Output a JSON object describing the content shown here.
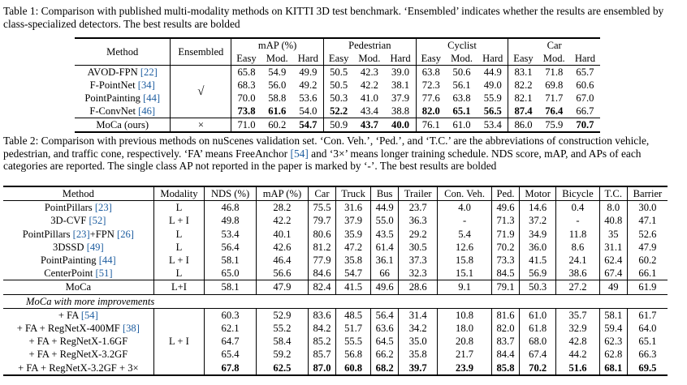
{
  "caption1": {
    "label": "Table 1:",
    "text": "Comparison with published multi-modality methods on KITTI 3D test benchmark. ‘Ensembled’ indicates whether the results are ensembled by class-specialized detectors. The best results are bolded"
  },
  "table1": {
    "h_method": "Method",
    "h_ensembled": "Ensembled",
    "h_map": "mAP (%)",
    "h_ped": "Pedestrian",
    "h_cyc": "Cyclist",
    "h_car": "Car",
    "sub": [
      "Easy",
      "Mod.",
      "Hard",
      "Easy",
      "Mod.",
      "Hard",
      "Easy",
      "Mod.",
      "Hard",
      "Easy",
      "Mod.",
      "Hard"
    ],
    "rows": [
      {
        "name": "AVOD-FPN",
        "cite": "[22]",
        "v": [
          "65.8",
          "54.9",
          "49.9",
          "50.5",
          "42.3",
          "39.0",
          "63.8",
          "50.6",
          "44.9",
          "83.1",
          "71.8",
          "65.7"
        ]
      },
      {
        "name": "F-PointNet",
        "cite": "[34]",
        "v": [
          "68.3",
          "56.0",
          "49.2",
          "50.5",
          "42.2",
          "38.1",
          "72.3",
          "56.1",
          "49.0",
          "82.2",
          "69.8",
          "60.6"
        ]
      },
      {
        "name": "PointPainting",
        "cite": "[44]",
        "v": [
          "70.0",
          "58.8",
          "53.6",
          "50.3",
          "41.0",
          "37.9",
          "77.6",
          "63.8",
          "55.9",
          "82.1",
          "71.7",
          "67.0"
        ]
      },
      {
        "name": "F-ConvNet",
        "cite": "[46]",
        "v": [
          "73.8",
          "61.6",
          "54.0",
          "52.2",
          "43.4",
          "38.8",
          "82.0",
          "65.1",
          "56.5",
          "87.4",
          "76.4",
          "66.7"
        ]
      }
    ],
    "ensembled_mark": "√",
    "moca": {
      "name": "MoCa (ours)",
      "ens": "×",
      "v": [
        "71.0",
        "60.2",
        "54.7",
        "50.9",
        "43.7",
        "40.0",
        "76.1",
        "61.0",
        "53.4",
        "86.0",
        "75.9",
        "70.7"
      ]
    }
  },
  "caption2": {
    "label": "Table 2:",
    "text": "Comparison with previous methods on nuScenes validation set. ‘Con. Veh.’, ‘Ped.’, and ‘T.C.’ are the abbreviations of construction vehicle, pedestrian, and traffic cone, respectively. ‘FA’ means FreeAnchor",
    "cite": "[54]",
    "text2": "and ‘3×’ means longer training schedule. NDS score, mAP, and APs of each categories are reported. The single class AP not reported in the paper is marked by ‘-’. The best results are bolded"
  },
  "table2": {
    "headers": [
      "Method",
      "Modality",
      "NDS (%)",
      "mAP (%)",
      "Car",
      "Truck",
      "Bus",
      "Trailer",
      "Con. Veh.",
      "Ped.",
      "Motor",
      "Bicycle",
      "T.C.",
      "Barrier"
    ],
    "rows": [
      {
        "name": "PointPillars",
        "cite": "[23]",
        "cite2": "",
        "mod": "L",
        "v": [
          "46.8",
          "28.2",
          "75.5",
          "31.6",
          "44.9",
          "23.7",
          "4.0",
          "49.6",
          "14.6",
          "0.4",
          "8.0",
          "30.0"
        ]
      },
      {
        "name": "3D-CVF",
        "cite": "[52]",
        "cite2": "",
        "mod": "L + I",
        "v": [
          "49.8",
          "42.2",
          "79.7",
          "37.9",
          "55.0",
          "36.3",
          "-",
          "71.3",
          "37.2",
          "-",
          "40.8",
          "47.1"
        ]
      },
      {
        "name": "PointPillars",
        "cite": "[23]",
        "cite2": "[26]",
        "mid": "+FPN",
        "mod": "L",
        "v": [
          "53.4",
          "40.1",
          "80.6",
          "35.9",
          "43.5",
          "29.2",
          "5.4",
          "71.9",
          "34.9",
          "11.8",
          "35",
          "52.6"
        ]
      },
      {
        "name": "3DSSD",
        "cite": "[49]",
        "cite2": "",
        "mod": "L",
        "v": [
          "56.4",
          "42.6",
          "81.2",
          "47.2",
          "61.4",
          "30.5",
          "12.6",
          "70.2",
          "36.0",
          "8.6",
          "31.1",
          "47.9"
        ]
      },
      {
        "name": "PointPainting",
        "cite": "[44]",
        "cite2": "",
        "mod": "L + I",
        "v": [
          "58.1",
          "46.4",
          "77.9",
          "35.8",
          "36.1",
          "37.3",
          "15.8",
          "73.3",
          "41.5",
          "24.1",
          "62.4",
          "60.2"
        ]
      },
      {
        "name": "CenterPoint",
        "cite": "[51]",
        "cite2": "",
        "mod": "L",
        "v": [
          "65.0",
          "56.6",
          "84.6",
          "54.7",
          "66",
          "32.3",
          "15.1",
          "84.5",
          "56.9",
          "38.6",
          "67.4",
          "66.1"
        ]
      }
    ],
    "moca": {
      "name": "MoCa",
      "mod": "L+I",
      "v": [
        "58.1",
        "47.9",
        "82.4",
        "41.5",
        "49.6",
        "28.6",
        "9.1",
        "79.1",
        "50.3",
        "27.2",
        "49",
        "61.9"
      ]
    },
    "section": "MoCa with more improvements",
    "imp_mod": "L + I",
    "imp": [
      {
        "name": "+ FA",
        "cite": "[54]",
        "v": [
          "60.3",
          "52.9",
          "83.6",
          "48.5",
          "56.4",
          "31.4",
          "10.8",
          "81.6",
          "61.0",
          "35.7",
          "58.1",
          "61.7"
        ]
      },
      {
        "name": "+ FA + RegNetX-400MF",
        "cite": "[38]",
        "v": [
          "62.1",
          "55.2",
          "84.2",
          "51.7",
          "63.6",
          "34.2",
          "18.0",
          "82.0",
          "61.8",
          "32.9",
          "59.4",
          "64.0"
        ]
      },
      {
        "name": "+ FA + RegNetX-1.6GF",
        "cite": "",
        "v": [
          "64.7",
          "58.4",
          "85.2",
          "55.5",
          "64.5",
          "35.0",
          "20.8",
          "83.7",
          "68.0",
          "42.8",
          "62.3",
          "65.1"
        ]
      },
      {
        "name": "+ FA + RegNetX-3.2GF",
        "cite": "",
        "v": [
          "65.4",
          "59.2",
          "85.7",
          "56.8",
          "66.2",
          "35.8",
          "21.7",
          "84.4",
          "67.4",
          "44.2",
          "62.8",
          "66.3"
        ]
      },
      {
        "name": "+ FA + RegNetX-3.2GF + 3×",
        "cite": "",
        "v": [
          "67.8",
          "62.5",
          "87.0",
          "60.8",
          "68.2",
          "39.7",
          "23.9",
          "85.8",
          "70.2",
          "51.6",
          "68.1",
          "69.5"
        ]
      }
    ]
  }
}
